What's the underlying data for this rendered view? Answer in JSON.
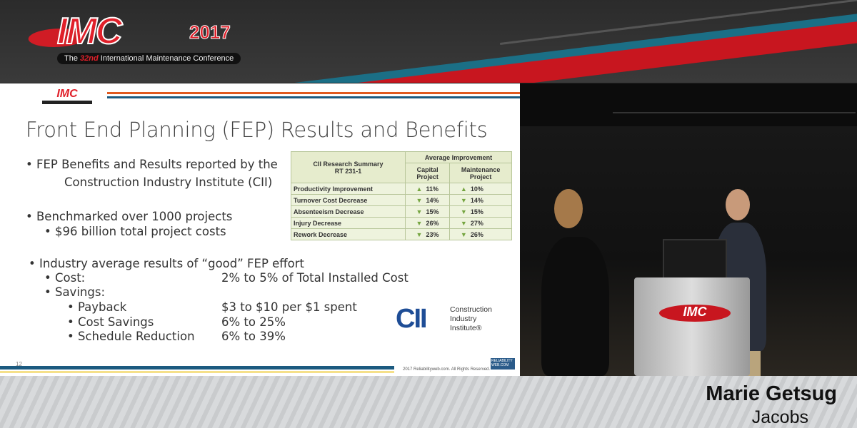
{
  "banner": {
    "logo_text": "IMC",
    "logo_year": "2017",
    "tagline_pre": "The",
    "tagline_num": "32nd",
    "tagline_post": "International Maintenance Conference"
  },
  "slide": {
    "title": "Front End Planning (FEP) Results and Benefits",
    "bullets": [
      {
        "text": "• FEP Benefits and Results reported by the"
      },
      {
        "text": "Construction Industry Institute (CII)"
      },
      {
        "text": "• Benchmarked over 1000 projects"
      },
      {
        "text": "•   $96 billion total project costs"
      },
      {
        "text": "• Industry average results of “good” FEP effort"
      }
    ],
    "effort": [
      {
        "label": "•   Cost:",
        "value": "2% to 5% of Total Installed Cost"
      },
      {
        "label": "•   Savings:",
        "value": ""
      },
      {
        "label": "•   Payback",
        "value": "$3 to $10 per $1 spent"
      },
      {
        "label": "•   Cost Savings",
        "value": "6% to 25%"
      },
      {
        "label": "•   Schedule Reduction",
        "value": "6% to 39%"
      }
    ],
    "table": {
      "title1": "CII Research Summary",
      "title2": "RT 231-1",
      "group": "Average Improvement",
      "col1": "Capital Project",
      "col2": "Maintenance Project",
      "rows": [
        {
          "label": "Productivity Improvement",
          "dir": "up",
          "c": "11%",
          "m": "10%"
        },
        {
          "label": "Turnover Cost Decrease",
          "dir": "down",
          "c": "14%",
          "m": "14%"
        },
        {
          "label": "Absenteeism Decrease",
          "dir": "down",
          "c": "15%",
          "m": "15%"
        },
        {
          "label": "Injury Decrease",
          "dir": "down",
          "c": "26%",
          "m": "27%"
        },
        {
          "label": "Rework Decrease",
          "dir": "down",
          "c": "23%",
          "m": "26%"
        }
      ]
    },
    "cii_logo": {
      "mark": "CII",
      "line1": "Construction",
      "line2": "Industry",
      "line3": "Institute®"
    },
    "page_number": "12",
    "copyright": "2017 Reliabilityweb.com. All Rights Reserved.",
    "rw_logo": "RELIABILITY WEB.COM"
  },
  "speaker": {
    "name": "Marie Getsug",
    "org": "Jacobs"
  },
  "colors": {
    "red": "#e0202a",
    "teal": "#1b6f86",
    "slide_blue": "#1b5a80",
    "table_bg": "#eef3dd"
  }
}
